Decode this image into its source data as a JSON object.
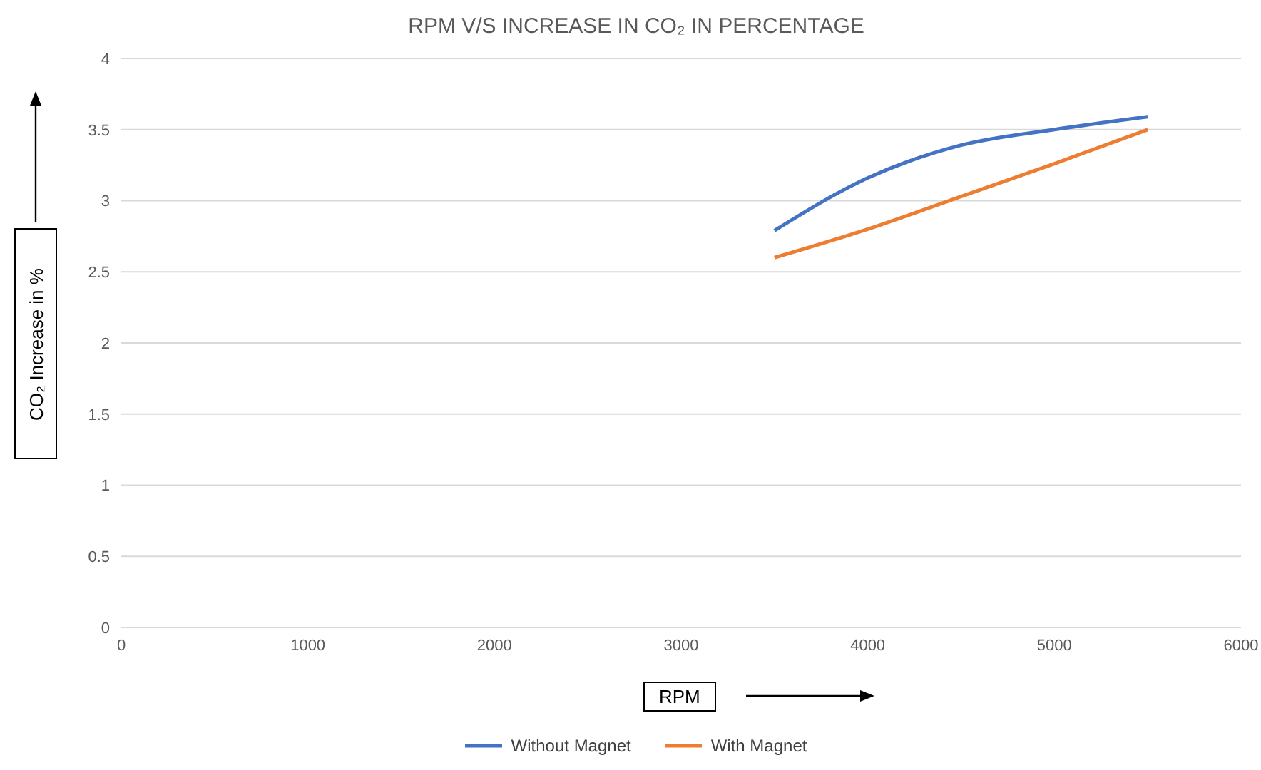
{
  "chart_data": {
    "type": "line",
    "title": "RPM V/S INCREASE IN CO₂ IN PERCENTAGE",
    "xlabel": "RPM",
    "ylabel": "CO₂ Increase in %",
    "x": [
      3500,
      4000,
      4500,
      5000,
      5500
    ],
    "series": [
      {
        "name": "Without Magnet",
        "color": "#4472c4",
        "values": [
          2.79,
          3.16,
          3.39,
          3.5,
          3.59
        ]
      },
      {
        "name": "With Magnet",
        "color": "#ed7d31",
        "values": [
          2.6,
          2.8,
          3.03,
          3.26,
          3.5
        ]
      }
    ],
    "xlim": [
      0,
      6000
    ],
    "xticks": [
      0,
      1000,
      2000,
      3000,
      4000,
      5000,
      6000
    ],
    "ylim": [
      0,
      4
    ],
    "yticks": [
      0,
      0.5,
      1,
      1.5,
      2,
      2.5,
      3,
      3.5,
      4
    ],
    "grid": "y",
    "legend": "bottom",
    "marker": "none",
    "line_style": "solid"
  }
}
